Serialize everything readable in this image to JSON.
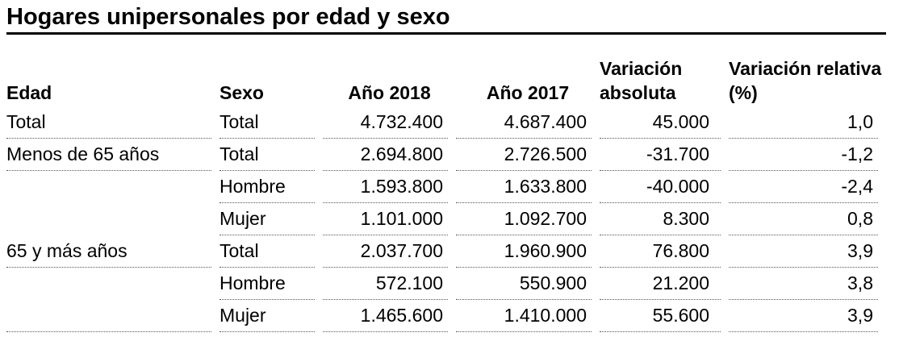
{
  "header": {
    "title": "Hogares unipersonales por edad y sexo"
  },
  "table": {
    "columns": [
      "Edad",
      "Sexo",
      "Año 2018",
      "Año 2017",
      "Variación absoluta",
      "Variación relativa (%)"
    ],
    "rows": [
      [
        "Total",
        "Total",
        "4.732.400",
        "4.687.400",
        "45.000",
        "1,0"
      ],
      [
        "Menos de 65 años",
        "Total",
        "2.694.800",
        "2.726.500",
        "-31.700",
        "-1,2"
      ],
      [
        null,
        "Hombre",
        "1.593.800",
        "1.633.800",
        "-40.000",
        "-2,4"
      ],
      [
        null,
        "Mujer",
        "1.101.000",
        "1.092.700",
        "8.300",
        "0,8"
      ],
      [
        "65 y más años",
        "Total",
        "2.037.700",
        "1.960.900",
        "76.800",
        "3,9"
      ],
      [
        null,
        "Hombre",
        "572.100",
        "550.900",
        "21.200",
        "3,8"
      ],
      [
        null,
        "Mujer",
        "1.465.600",
        "1.410.000",
        "55.600",
        "3,9"
      ]
    ]
  }
}
